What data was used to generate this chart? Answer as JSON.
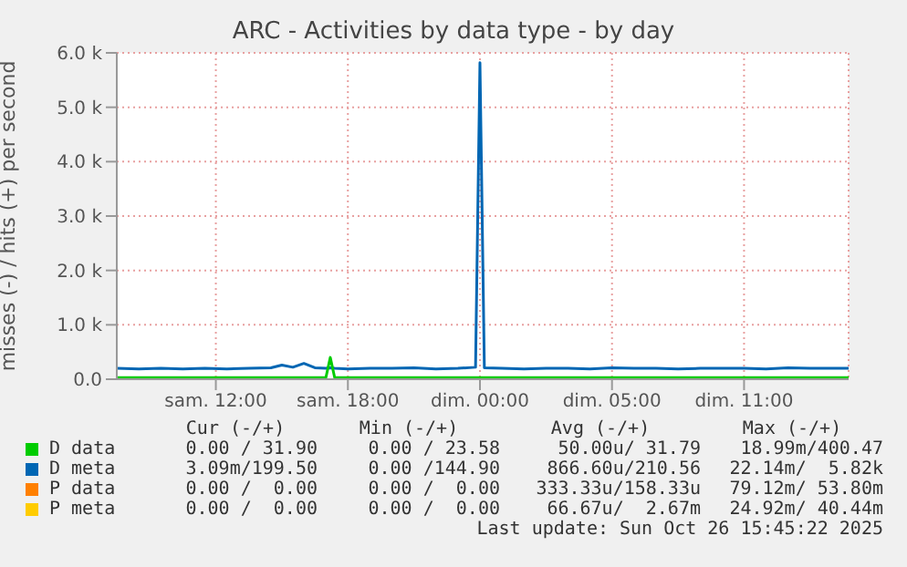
{
  "chart_data": {
    "type": "line",
    "title": "ARC - Activities by data type - by day",
    "ylabel": "misses (-) / hits (+) per second",
    "x": [
      "2025-10-25T05:30",
      "2025-10-25T06:30",
      "2025-10-25T07:30",
      "2025-10-25T08:30",
      "2025-10-25T09:30",
      "2025-10-25T10:30",
      "2025-10-25T11:30",
      "2025-10-25T12:30",
      "2025-10-25T13:00",
      "2025-10-25T13:30",
      "2025-10-25T14:00",
      "2025-10-25T14:30",
      "2025-10-25T15:00",
      "2025-10-25T15:12",
      "2025-10-25T15:24",
      "2025-10-25T16:00",
      "2025-10-25T17:00",
      "2025-10-25T18:00",
      "2025-10-25T19:00",
      "2025-10-25T20:00",
      "2025-10-25T21:00",
      "2025-10-25T21:48",
      "2025-10-25T22:00",
      "2025-10-25T22:12",
      "2025-10-25T23:00",
      "2025-10-26T00:00",
      "2025-10-26T01:00",
      "2025-10-26T02:00",
      "2025-10-26T03:00",
      "2025-10-26T04:00",
      "2025-10-26T05:00",
      "2025-10-26T06:00",
      "2025-10-26T07:00",
      "2025-10-26T08:00",
      "2025-10-26T09:00",
      "2025-10-26T10:00",
      "2025-10-26T11:00",
      "2025-10-26T12:00",
      "2025-10-26T13:00",
      "2025-10-26T14:00",
      "2025-10-26T14:45"
    ],
    "xlim": [
      "2025-10-25T05:30",
      "2025-10-26T14:45"
    ],
    "xticks": [
      {
        "value": "2025-10-25T10:00",
        "label": "sam. 12:00"
      },
      {
        "value": "2025-10-25T16:00",
        "label": "sam. 18:00"
      },
      {
        "value": "2025-10-25T22:00",
        "label": "dim. 00:00"
      },
      {
        "value": "2025-10-26T04:00",
        "label": "dim. 05:00"
      },
      {
        "value": "2025-10-26T10:00",
        "label": "dim. 11:00"
      }
    ],
    "ylim": [
      0,
      6000
    ],
    "yticks": [
      {
        "value": 0,
        "label": "0.0"
      },
      {
        "value": 1000,
        "label": "1.0 k"
      },
      {
        "value": 2000,
        "label": "2.0 k"
      },
      {
        "value": 3000,
        "label": "3.0 k"
      },
      {
        "value": 4000,
        "label": "4.0 k"
      },
      {
        "value": 5000,
        "label": "5.0 k"
      },
      {
        "value": 6000,
        "label": "6.0 k"
      }
    ],
    "grid": true,
    "legend": "bottom",
    "marker": "none",
    "line_style": "solid",
    "series": [
      {
        "name": "D data",
        "color": "#00cc00",
        "values": [
          30,
          30,
          30,
          30,
          30,
          30,
          30,
          30,
          30,
          30,
          30,
          30,
          30,
          400,
          30,
          30,
          30,
          30,
          30,
          30,
          30,
          30,
          30,
          30,
          30,
          30,
          30,
          30,
          30,
          30,
          30,
          30,
          30,
          30,
          30,
          30,
          30,
          30,
          30,
          30,
          30
        ]
      },
      {
        "name": "D meta",
        "color": "#0066b3",
        "values": [
          200,
          190,
          200,
          190,
          200,
          190,
          200,
          210,
          260,
          220,
          290,
          210,
          200,
          210,
          200,
          190,
          200,
          200,
          210,
          190,
          200,
          220,
          5820,
          210,
          200,
          190,
          200,
          200,
          190,
          210,
          200,
          200,
          190,
          200,
          200,
          200,
          190,
          210,
          200,
          200,
          200
        ]
      },
      {
        "name": "P data",
        "color": "#ff8000",
        "values": [
          null,
          null,
          null,
          null,
          null,
          null,
          null,
          null,
          null,
          null,
          null,
          null,
          null,
          null,
          null,
          null,
          null,
          null,
          null,
          null,
          null,
          null,
          null,
          null,
          null,
          null,
          null,
          null,
          null,
          null,
          null,
          null,
          null,
          null,
          null,
          null,
          null,
          null,
          null,
          null,
          null
        ]
      },
      {
        "name": "P meta",
        "color": "#ffcc00",
        "values": [
          null,
          null,
          null,
          null,
          null,
          null,
          null,
          null,
          null,
          null,
          null,
          null,
          null,
          null,
          null,
          null,
          null,
          null,
          null,
          null,
          null,
          null,
          null,
          null,
          null,
          null,
          null,
          null,
          null,
          null,
          null,
          null,
          null,
          null,
          null,
          null,
          null,
          null,
          null,
          null,
          null
        ]
      }
    ],
    "annotations": [
      "Cur (-/+)",
      "Min (-/+)",
      "Avg (-/+)",
      "Max (-/+)",
      "0.00 / 31.90",
      "0.00 / 23.58",
      "50.00u/ 31.79",
      "18.99m/400.47",
      "3.09m/199.50",
      "0.00 /144.90",
      "866.60u/210.56",
      "22.14m/  5.82k",
      "0.00 /  0.00",
      "0.00 /  0.00",
      "333.33u/158.33u",
      "79.12m/ 53.80m",
      "0.00 /  0.00",
      "0.00 /  0.00",
      "66.67u/  2.67m",
      "24.92m/ 40.44m",
      "Last update: Sun Oct 26 15:45:22 2025"
    ]
  }
}
